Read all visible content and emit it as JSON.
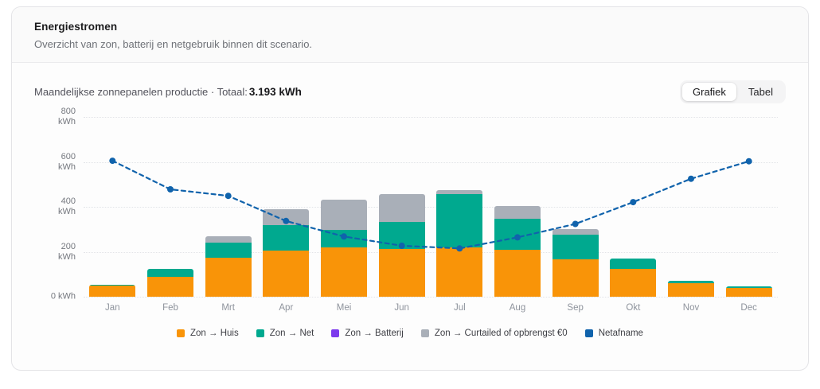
{
  "card": {
    "title": "Energiestromen",
    "subtitle": "Overzicht van zon, batterij en netgebruik binnen dit scenario.",
    "chart_header": {
      "label": "Maandelijkse zonnepanelen productie · Totaal:",
      "total": "3.193 kWh"
    },
    "view_toggle": {
      "options": [
        {
          "label": "Grafiek",
          "active": true
        },
        {
          "label": "Tabel",
          "active": false
        }
      ]
    }
  },
  "chart_data": {
    "type": "bar",
    "subtype": "stacked-bar-with-line",
    "categories": [
      "Jan",
      "Feb",
      "Mrt",
      "Apr",
      "Mei",
      "Jun",
      "Jul",
      "Aug",
      "Sep",
      "Okt",
      "Nov",
      "Dec"
    ],
    "series": [
      {
        "name": "Zon → Huis",
        "type": "bar",
        "color": "#F99408",
        "values": [
          50,
          90,
          174,
          205,
          219,
          213,
          219,
          210,
          167,
          123,
          61,
          40
        ]
      },
      {
        "name": "Zon → Net",
        "type": "bar",
        "color": "#00A98F",
        "values": [
          4,
          35,
          67,
          112,
          77,
          119,
          237,
          137,
          108,
          47,
          11,
          6
        ]
      },
      {
        "name": "Zon → Batterij",
        "type": "bar",
        "color": "#7C3AED",
        "values": [
          0,
          0,
          0,
          0,
          0,
          0,
          0,
          0,
          0,
          0,
          0,
          0
        ]
      },
      {
        "name": "Zon → Curtailed of opbrengst €0",
        "type": "bar",
        "color": "#A9AFB8",
        "values": [
          0,
          0,
          27,
          73,
          135,
          126,
          18,
          57,
          26,
          0,
          0,
          0
        ]
      },
      {
        "name": "Netafname",
        "type": "line",
        "color": "#1063AC",
        "values": [
          605,
          478,
          449,
          337,
          268,
          227,
          215,
          264,
          324,
          421,
          525,
          603
        ]
      }
    ],
    "bar_totals": [
      54,
      125,
      268,
      390,
      431,
      458,
      474,
      404,
      301,
      170,
      72,
      46
    ],
    "total_production_kwh": 3193,
    "ylabel": "kWh",
    "ylim": [
      0,
      800
    ],
    "yticks": [
      {
        "value": 800,
        "label": "800\nkWh"
      },
      {
        "value": 600,
        "label": "600\nkWh"
      },
      {
        "value": 400,
        "label": "400\nkWh"
      },
      {
        "value": 200,
        "label": "200\nkWh"
      },
      {
        "value": 0,
        "label": "0 kWh"
      }
    ],
    "grid": true,
    "legend_position": "bottom"
  }
}
